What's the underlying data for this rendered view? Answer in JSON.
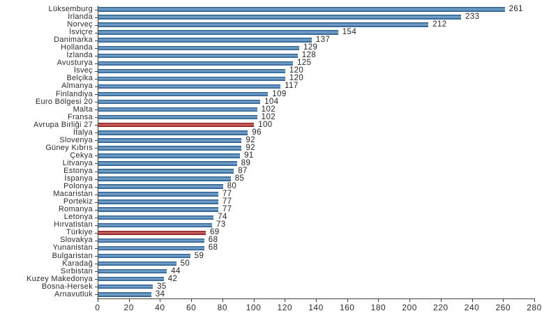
{
  "chart_data": {
    "type": "bar",
    "orientation": "horizontal",
    "title": "",
    "xlabel": "",
    "ylabel": "",
    "xlim": [
      0,
      280
    ],
    "xticks": [
      0,
      20,
      40,
      60,
      80,
      100,
      120,
      140,
      160,
      180,
      200,
      220,
      240,
      260,
      280
    ],
    "grid": false,
    "legend": false,
    "categories": [
      "Lüksemburg",
      "İrlanda",
      "Norveç",
      "İsviçre",
      "Danimarka",
      "Hollanda",
      "İzlanda",
      "Avusturya",
      "İsveç",
      "Belçika",
      "Almanya",
      "Finlandiya",
      "Euro Bölgesi 20",
      "Malta",
      "Fransa",
      "Avrupa Birliği 27",
      "İtalya",
      "Slovenya",
      "Güney Kıbrıs",
      "Çekya",
      "Litvanya",
      "Estonya",
      "İspanya",
      "Polonya",
      "Macaristan",
      "Portekiz",
      "Romanya",
      "Letonya",
      "Hırvatistan",
      "Türkiye",
      "Slovakya",
      "Yunanistan",
      "Bulgaristan",
      "Karadağ",
      "Sırbistan",
      "Kuzey Makedonya",
      "Bosna-Hersek",
      "Arnavutluk"
    ],
    "values": [
      261,
      233,
      212,
      154,
      137,
      129,
      128,
      125,
      120,
      120,
      117,
      109,
      104,
      102,
      102,
      100,
      96,
      92,
      92,
      91,
      89,
      87,
      85,
      80,
      77,
      77,
      77,
      74,
      73,
      69,
      68,
      68,
      59,
      50,
      44,
      42,
      35,
      34
    ],
    "highlight_indices": [
      15,
      29
    ],
    "bar_color": "#2E75B6",
    "highlight_color": "#B01513",
    "axis_color": "#404040",
    "text_color": "#262626"
  }
}
